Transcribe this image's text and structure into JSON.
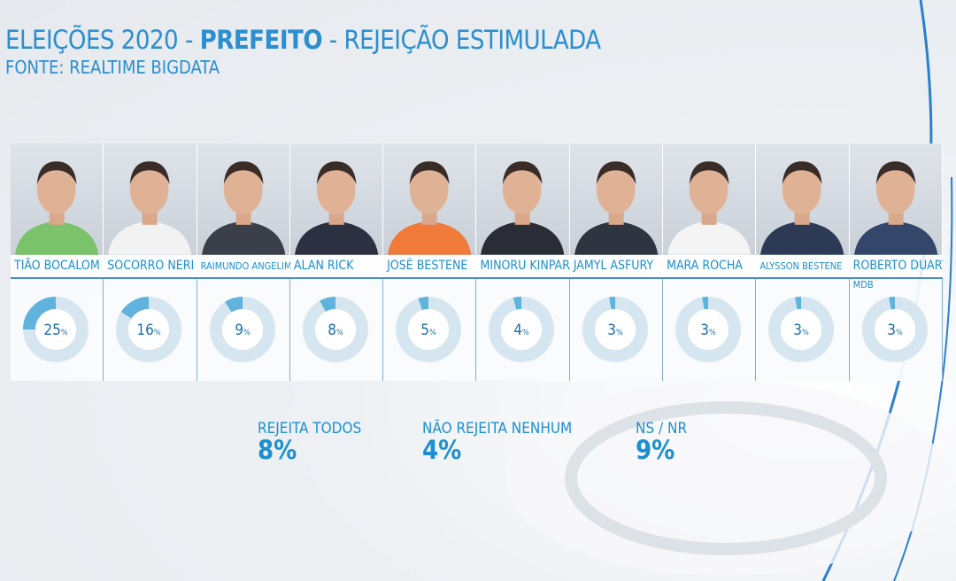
{
  "header": {
    "title_prefix": "ELEIÇÕES 2020 - ",
    "title_bold": "PREFEITO",
    "title_suffix": " - REJEIÇÃO ESTIMULADA",
    "source": "FONTE: REALTIME BIGDATA"
  },
  "colors": {
    "accent": "#1b8fd0",
    "donut_fill": "#5fb3dd",
    "donut_track": "#d6e6f0"
  },
  "chart_data": {
    "type": "pie",
    "style": "donut",
    "title": "ELEIÇÕES 2020 - PREFEITO - REJEIÇÃO ESTIMULADA",
    "categories": [
      "TIÃO BOCALOM",
      "SOCORRO NERI",
      "RAIMUNDO ANGELIM",
      "ALAN RICK",
      "JOSÉ BESTENE",
      "MINORU KINPARA",
      "JAMYL ASFURY",
      "MARA ROCHA",
      "ALYSSON BESTENE",
      "ROBERTO DUARTE"
    ],
    "values": [
      25,
      16,
      9,
      8,
      5,
      4,
      3,
      3,
      3,
      3
    ],
    "unit": "%",
    "labels": [
      "25%",
      "16%",
      "9%",
      "8%",
      "5%",
      "4%",
      "3%",
      "3%",
      "3%",
      "3%"
    ]
  },
  "candidates": [
    {
      "name": "TIÃO BOCALOM",
      "party": "",
      "value_label": "25",
      "shirt": "#7ac36a"
    },
    {
      "name": "SOCORRO NERI",
      "party": "",
      "value_label": "16",
      "shirt": "#f2f2f2"
    },
    {
      "name": "RAIMUNDO ANGELIM",
      "party": "",
      "value_label": "9",
      "shirt": "#3a3f4a"
    },
    {
      "name": "ALAN RICK",
      "party": "",
      "value_label": "8",
      "shirt": "#2b3140"
    },
    {
      "name": "JOSÉ BESTENE",
      "party": "",
      "value_label": "5",
      "shirt": "#f07a3a"
    },
    {
      "name": "MINORU KINPARA",
      "party": "",
      "value_label": "4",
      "shirt": "#2a2d35"
    },
    {
      "name": "JAMYL ASFURY",
      "party": "",
      "value_label": "3",
      "shirt": "#2f3540"
    },
    {
      "name": "MARA ROCHA",
      "party": "",
      "value_label": "3",
      "shirt": "#f4f4f4"
    },
    {
      "name": "ALYSSON BESTENE",
      "party": "",
      "value_label": "3",
      "shirt": "#2c3a55"
    },
    {
      "name": "ROBERTO DUARTE",
      "party": "MDB",
      "value_label": "3",
      "shirt": "#34466a"
    }
  ],
  "percent_sign": "%",
  "summary": [
    {
      "label": "REJEITA TODOS",
      "value": "8%"
    },
    {
      "label": "NÃO REJEITA NENHUM",
      "value": "4%"
    },
    {
      "label": "NS / NR",
      "value": "9%"
    }
  ]
}
